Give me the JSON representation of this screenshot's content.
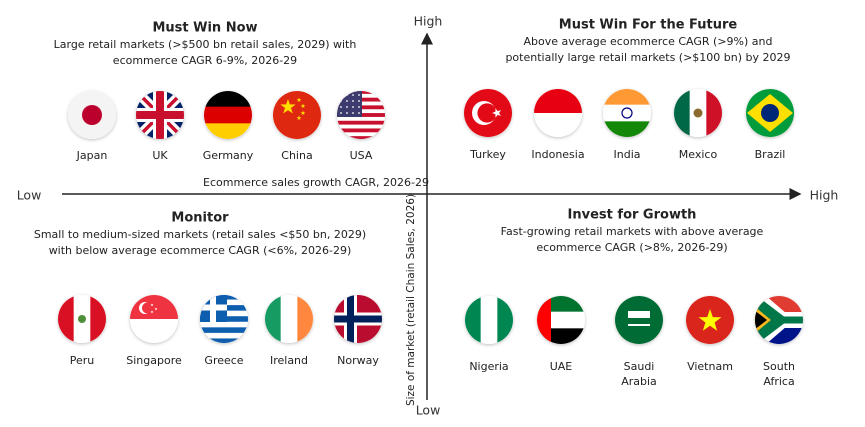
{
  "axes": {
    "y_high": "High",
    "y_low": "Low",
    "x_low": "Low",
    "x_high": "High",
    "x_label": "Ecommerce sales growth CAGR, 2026-29",
    "y_label": "Size of market (retail Chain Sales, 2026)"
  },
  "quadrants": [
    {
      "title": "Must Win Now",
      "description": [
        "Large retail markets (>$500 bn retail sales, 2029) with",
        "ecommerce CAGR 6-9%, 2026-29"
      ],
      "countries": [
        [
          "Japan"
        ],
        [
          "UK"
        ],
        [
          "Germany"
        ],
        [
          "China"
        ],
        [
          "USA"
        ]
      ]
    },
    {
      "title": "Must Win For the Future",
      "description": [
        "Above average ecommerce CAGR (>9%) and",
        "potentially large retail markets (>$100 bn) by 2029"
      ],
      "countries": [
        [
          "Turkey"
        ],
        [
          "Indonesia"
        ],
        [
          "India"
        ],
        [
          "Mexico"
        ],
        [
          "Brazil"
        ]
      ]
    },
    {
      "title": "Monitor",
      "description": [
        "Small to medium-sized markets (retail sales <$50 bn, 2029)",
        "with below average ecommerce CAGR (<6%, 2026-29)"
      ],
      "countries": [
        [
          "Peru"
        ],
        [
          "Singapore"
        ],
        [
          "Greece"
        ],
        [
          "Ireland"
        ],
        [
          "Norway"
        ]
      ]
    },
    {
      "title": "Invest for Growth",
      "description": [
        "Fast-growing retail markets with above average",
        "ecommerce CAGR (>8%, 2026-29)"
      ],
      "countries": [
        [
          "Nigeria"
        ],
        [
          "UAE"
        ],
        [
          "Saudi",
          "Arabia"
        ],
        [
          "Vietnam"
        ],
        [
          "South",
          "Africa"
        ]
      ]
    }
  ]
}
